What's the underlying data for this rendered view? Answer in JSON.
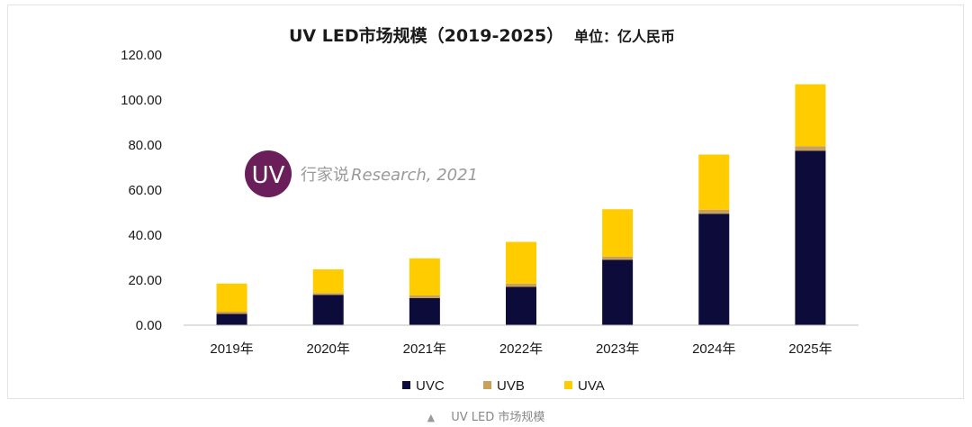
{
  "chart_data": {
    "type": "bar",
    "stacked": true,
    "title": "UV LED市场规模（2019-2025）",
    "unit_label": "单位：亿人民币",
    "categories": [
      "2019年",
      "2020年",
      "2021年",
      "2022年",
      "2023年",
      "2024年",
      "2025年"
    ],
    "series": [
      {
        "name": "UVC",
        "color": "#0d0b3a",
        "values": [
          5.0,
          13.5,
          12.0,
          17.0,
          29.0,
          49.5,
          77.5
        ]
      },
      {
        "name": "UVB",
        "color": "#c9a15a",
        "values": [
          1.0,
          0.8,
          1.2,
          1.5,
          1.5,
          1.8,
          2.0
        ]
      },
      {
        "name": "UVA",
        "color": "#ffcc00",
        "values": [
          12.5,
          10.5,
          16.5,
          18.5,
          21.0,
          24.5,
          27.5
        ]
      }
    ],
    "ylim": [
      0,
      120
    ],
    "yticks": [
      "0.00",
      "20.00",
      "40.00",
      "60.00",
      "80.00",
      "100.00",
      "120.00"
    ],
    "grid": false,
    "legend_position": "bottom"
  },
  "watermark": {
    "logo_text": "UV",
    "text_cn": "行家说",
    "text_en": "Research, 2021",
    "logo_color": "#6b1f5a"
  },
  "caption": {
    "marker": "▲",
    "text": "UV LED 市场规模"
  }
}
